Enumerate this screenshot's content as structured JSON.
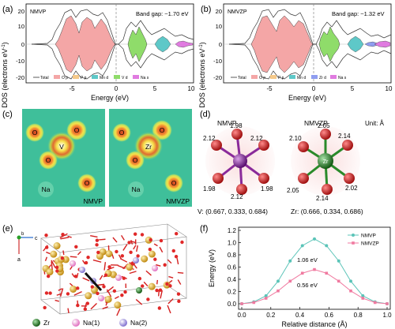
{
  "panels": {
    "a": {
      "label": "(a)",
      "tag": "NMVP",
      "band_gap": "Band gap: ~1.70 eV",
      "ylabel": "DOS (electrons eV",
      "ylabel_sup": "-1",
      "ylabel_end": ")",
      "xlabel": "Energy (eV)",
      "xticks": [
        "-5",
        "0",
        "5",
        "10"
      ],
      "yticks": [
        "20",
        "10",
        "0",
        "-10",
        "-20"
      ],
      "legend": [
        "Total",
        "O p",
        "P p",
        "Mn d",
        "V d",
        "Na s"
      ]
    },
    "b": {
      "label": "(b)",
      "tag": "NMVZP",
      "band_gap": "Band gap: ~1.32 eV",
      "ylabel": "DOS (electrons eV",
      "ylabel_sup": "-1",
      "ylabel_end": ")",
      "xlabel": "Energy (eV)",
      "xticks": [
        "-5",
        "0",
        "5",
        "10"
      ],
      "yticks": [
        "20",
        "10",
        "0",
        "-10",
        "-20"
      ],
      "legend": [
        "Total",
        "O p",
        "P p",
        "Mn d",
        "Zr d",
        "Na s"
      ]
    },
    "c": {
      "label": "(c)",
      "left_tag": "NMVP",
      "right_tag": "NMVZP",
      "atoms_left": [
        "V",
        "O",
        "O",
        "O",
        "O",
        "Na"
      ],
      "atoms_right": [
        "Zr",
        "O",
        "O",
        "O",
        "O",
        "Na"
      ]
    },
    "d": {
      "label": "(d)",
      "left_title": "NMVP",
      "right_title": "NMVZP",
      "unit": "Unit: Å",
      "left_bonds": [
        "1.98",
        "2.12",
        "2.12",
        "1.98",
        "2.12",
        "1.98"
      ],
      "right_bonds": [
        "2.05",
        "2.10",
        "2.14",
        "2.05",
        "2.14",
        "2.02"
      ],
      "left_coord": "V: (0.667, 0.333, 0.684)",
      "right_coord": "Zr: (0.666, 0.334, 0.686)"
    },
    "e": {
      "label": "(e)",
      "axes": {
        "c": "c",
        "a": "a",
        "b": "b"
      },
      "legend": [
        "Zr",
        "Na(1)",
        "Na(2)"
      ]
    },
    "f": {
      "label": "(f)",
      "annotation_high": "1.06 eV",
      "annotation_low": "0.56 eV"
    }
  },
  "colors": {
    "o_p": "#f4a6a6",
    "p_p": "#f5c98a",
    "mn_d": "#5ec8c8",
    "v_d": "#8fdc6a",
    "zr_d": "#8f9df0",
    "na_s": "#e07be0",
    "nmvp": "#5bc4b8",
    "nmvzp": "#f07aa0",
    "vanadium": "#8a2a9a",
    "zirconium": "#2a8a2a"
  },
  "chart_data": [
    {
      "type": "line",
      "title": "",
      "xlabel": "Relative distance (Å)",
      "ylabel": "Energy (eV)",
      "xlim": [
        0.0,
        1.0
      ],
      "ylim": [
        0.0,
        1.2
      ],
      "xticks": [
        "0.0",
        "0.2",
        "0.4",
        "0.6",
        "0.8",
        "1.0"
      ],
      "yticks": [
        "0.0",
        "0.2",
        "0.4",
        "0.6",
        "0.8",
        "1.0",
        "1.2"
      ],
      "legend_position": "top-right",
      "series": [
        {
          "name": "NMVP",
          "x": [
            0.0,
            0.083,
            0.167,
            0.25,
            0.333,
            0.417,
            0.5,
            0.583,
            0.667,
            0.75,
            0.833,
            0.917,
            1.0
          ],
          "y": [
            0.0,
            0.03,
            0.13,
            0.37,
            0.7,
            0.95,
            1.06,
            0.95,
            0.7,
            0.37,
            0.13,
            0.03,
            0.0
          ]
        },
        {
          "name": "NMVZP",
          "x": [
            0.0,
            0.083,
            0.167,
            0.25,
            0.333,
            0.417,
            0.5,
            0.583,
            0.667,
            0.75,
            0.833,
            0.917,
            1.0
          ],
          "y": [
            0.0,
            0.02,
            0.09,
            0.21,
            0.37,
            0.5,
            0.56,
            0.5,
            0.37,
            0.21,
            0.09,
            0.02,
            0.0
          ]
        }
      ]
    }
  ]
}
